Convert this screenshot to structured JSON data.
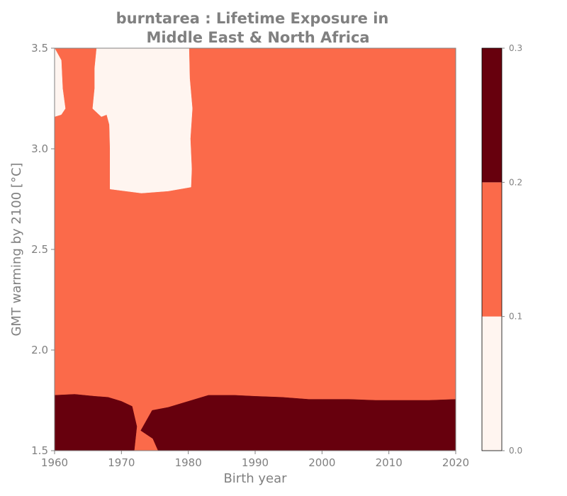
{
  "chart_data": {
    "type": "heatmap",
    "title_line1": "burntarea : Lifetime Exposure in",
    "title_line2": "Middle East & North Africa",
    "xlabel": "Birth year",
    "ylabel": "GMT warming by 2100 [°C]",
    "xlim": [
      1960,
      2020
    ],
    "ylim": [
      1.5,
      3.5
    ],
    "xticks": [
      1960,
      1970,
      1980,
      1990,
      2000,
      2010,
      2020
    ],
    "xtick_labels": [
      "1960",
      "1970",
      "1980",
      "1990",
      "2000",
      "2010",
      "2020"
    ],
    "yticks": [
      1.5,
      2.0,
      2.5,
      3.0,
      3.5
    ],
    "ytick_labels": [
      "1.5",
      "2.0",
      "2.5",
      "3.0",
      "3.5"
    ],
    "colorbar": {
      "ticks": [
        0.0,
        0.1,
        0.2,
        0.3
      ],
      "tick_labels": [
        "0.0",
        "0.1",
        "0.2",
        "0.3"
      ],
      "bins": [
        {
          "range": [
            0.0,
            0.1
          ],
          "color": "#fff5f0"
        },
        {
          "range": [
            0.1,
            0.2
          ],
          "color": "#fb6a4a"
        },
        {
          "range": [
            0.2,
            0.3
          ],
          "color": "#67000d"
        }
      ]
    },
    "background_bin_color": "#fb6a4a",
    "regions": [
      {
        "bin": 0,
        "color": "#fff5f0",
        "points": [
          [
            1960,
            3.5
          ],
          [
            1961,
            3.44
          ],
          [
            1961.2,
            3.3
          ],
          [
            1961.6,
            3.2
          ],
          [
            1961,
            3.17
          ],
          [
            1960,
            3.16
          ]
        ]
      },
      {
        "bin": 0,
        "color": "#fff5f0",
        "points": [
          [
            1966.3,
            3.5
          ],
          [
            1980.1,
            3.5
          ],
          [
            1980.2,
            3.35
          ],
          [
            1980.6,
            3.2
          ],
          [
            1980.3,
            3.05
          ],
          [
            1980.5,
            2.9
          ],
          [
            1980.4,
            2.81
          ],
          [
            1977,
            2.79
          ],
          [
            1973,
            2.78
          ],
          [
            1968.3,
            2.8
          ],
          [
            1968.3,
            3.0
          ],
          [
            1968.2,
            3.12
          ],
          [
            1967.8,
            3.17
          ],
          [
            1967,
            3.16
          ],
          [
            1965.7,
            3.2
          ],
          [
            1966,
            3.3
          ],
          [
            1966,
            3.4
          ]
        ]
      },
      {
        "bin": 2,
        "color": "#67000d",
        "points": [
          [
            1960,
            1.5
          ],
          [
            1960,
            1.775
          ],
          [
            1963,
            1.78
          ],
          [
            1966,
            1.77
          ],
          [
            1968,
            1.765
          ],
          [
            1970,
            1.745
          ],
          [
            1971.6,
            1.72
          ],
          [
            1972.3,
            1.62
          ],
          [
            1971.9,
            1.5
          ]
        ]
      },
      {
        "bin": 2,
        "color": "#67000d",
        "points": [
          [
            1975.5,
            1.5
          ],
          [
            1974.7,
            1.56
          ],
          [
            1972.9,
            1.6
          ],
          [
            1974.6,
            1.7
          ],
          [
            1977,
            1.715
          ],
          [
            1980,
            1.745
          ],
          [
            1983,
            1.775
          ],
          [
            1987,
            1.775
          ],
          [
            1990,
            1.77
          ],
          [
            1994,
            1.765
          ],
          [
            1998,
            1.755
          ],
          [
            2000,
            1.755
          ],
          [
            2004,
            1.755
          ],
          [
            2008,
            1.75
          ],
          [
            2012,
            1.75
          ],
          [
            2016,
            1.75
          ],
          [
            2020,
            1.755
          ],
          [
            2020,
            1.5
          ]
        ]
      }
    ]
  }
}
